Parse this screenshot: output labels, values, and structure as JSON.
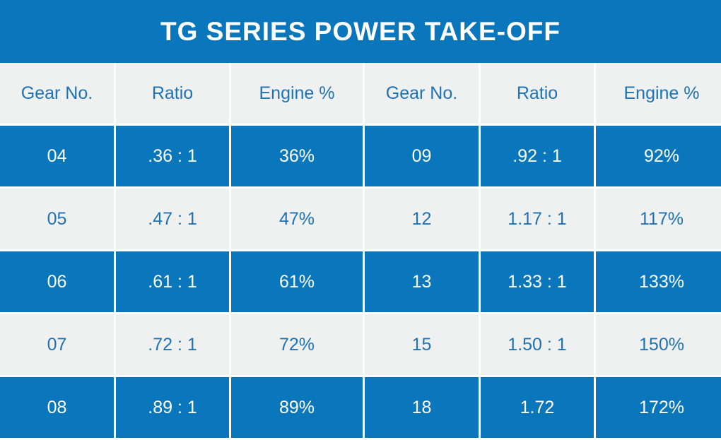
{
  "title": "TG SERIES POWER TAKE-OFF",
  "colors": {
    "blue": "#0a77bd",
    "light": "#eff1f1",
    "text_blue": "#1f72b3"
  },
  "headers": [
    "Gear No.",
    "Ratio",
    "Engine %",
    "Gear No.",
    "Ratio",
    "Engine %"
  ],
  "rows": [
    [
      "04",
      ".36 : 1",
      "36%",
      "09",
      ".92 : 1",
      "92%"
    ],
    [
      "05",
      ".47 : 1",
      "47%",
      "12",
      "1.17 : 1",
      "117%"
    ],
    [
      "06",
      ".61 : 1",
      "61%",
      "13",
      "1.33 : 1",
      "133%"
    ],
    [
      "07",
      ".72 : 1",
      "72%",
      "15",
      "1.50 : 1",
      "150%"
    ],
    [
      "08",
      ".89 : 1",
      "89%",
      "18",
      "1.72",
      "172%"
    ]
  ]
}
